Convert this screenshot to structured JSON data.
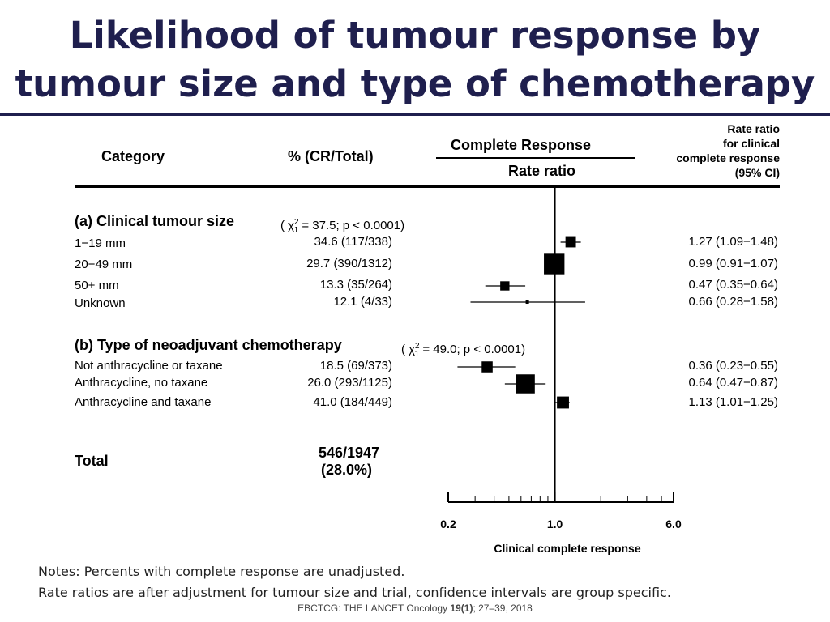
{
  "title_line1": "Likelihood of tumour response by",
  "title_line2": "tumour size and type of chemotherapy",
  "headers": {
    "category": "Category",
    "pct": "% (CR/Total)",
    "complete_response": "Complete Response",
    "rate_ratio": "Rate ratio",
    "right": [
      "Rate ratio",
      "for clinical",
      "complete response",
      "(95% CI)"
    ]
  },
  "sections": [
    {
      "label": "(a) Clinical tumour size",
      "chi": "( χ",
      "chi_sup": "2",
      "chi_sub": "1",
      "chi_rest": "= 37.5;  p < 0.0001)",
      "rows": [
        {
          "label": "1−19 mm",
          "pct": "34.6  (117/338)",
          "ci": "1.27 (1.09−1.48)"
        },
        {
          "label": "20−49 mm",
          "pct": "29.7  (390/1312)",
          "ci": "0.99 (0.91−1.07)"
        },
        {
          "label": "50+ mm",
          "pct": "13.3  (35/264)",
          "ci": "0.47 (0.35−0.64)"
        },
        {
          "label": "Unknown",
          "pct": "12.1  (4/33)",
          "ci": "0.66 (0.28−1.58)"
        }
      ]
    },
    {
      "label": "(b) Type of neoadjuvant chemotherapy",
      "chi": "( χ",
      "chi_sup": "2",
      "chi_sub": "1",
      "chi_rest": "= 49.0;  p < 0.0001)",
      "rows": [
        {
          "label": "Not anthracycline or taxane",
          "pct": "18.5  (69/373)",
          "ci": "0.36 (0.23−0.55)"
        },
        {
          "label": "Anthracycline, no taxane",
          "pct": "26.0  (293/1125)",
          "ci": "0.64 (0.47−0.87)"
        },
        {
          "label": "Anthracycline and taxane",
          "pct": "41.0  (184/449)",
          "ci": "1.13 (1.01−1.25)"
        }
      ]
    }
  ],
  "total": {
    "label": "Total",
    "count": "546/1947",
    "pct": "(28.0%)"
  },
  "notes": [
    "Notes: Percents with complete response are unadjusted.",
    "Rate ratios are after adjustment for tumour size and trial, confidence intervals are group specific."
  ],
  "citation": {
    "pre": "EBCTCG: THE LANCET Oncology ",
    "vol": "19(1)",
    "post": ";  27–39, 2018"
  },
  "chart_data": {
    "type": "forest",
    "scale": "log",
    "xlim": [
      0.2,
      6.0
    ],
    "xticks": [
      0.2,
      1.0,
      6.0
    ],
    "xticklabels": [
      "0.2",
      "1.0",
      "6.0"
    ],
    "minor_ticks": [
      0.3,
      0.4,
      0.5,
      0.6,
      0.7,
      0.8,
      0.9,
      2,
      3,
      4,
      5
    ],
    "reference_line": 1.0,
    "xlabel": "Clinical complete response",
    "points": [
      {
        "label": "1−19 mm",
        "value": 1.27,
        "lower": 1.09,
        "upper": 1.48,
        "weight": 338
      },
      {
        "label": "20−49 mm",
        "value": 0.99,
        "lower": 0.91,
        "upper": 1.07,
        "weight": 1312
      },
      {
        "label": "50+ mm",
        "value": 0.47,
        "lower": 0.35,
        "upper": 0.64,
        "weight": 264
      },
      {
        "label": "Unknown",
        "value": 0.66,
        "lower": 0.28,
        "upper": 1.58,
        "weight": 33
      },
      {
        "label": "Not anthracycline or taxane",
        "value": 0.36,
        "lower": 0.23,
        "upper": 0.55,
        "weight": 373
      },
      {
        "label": "Anthracycline, no taxane",
        "value": 0.64,
        "lower": 0.47,
        "upper": 0.87,
        "weight": 1125
      },
      {
        "label": "Anthracycline and taxane",
        "value": 1.13,
        "lower": 1.01,
        "upper": 1.25,
        "weight": 449
      }
    ]
  }
}
